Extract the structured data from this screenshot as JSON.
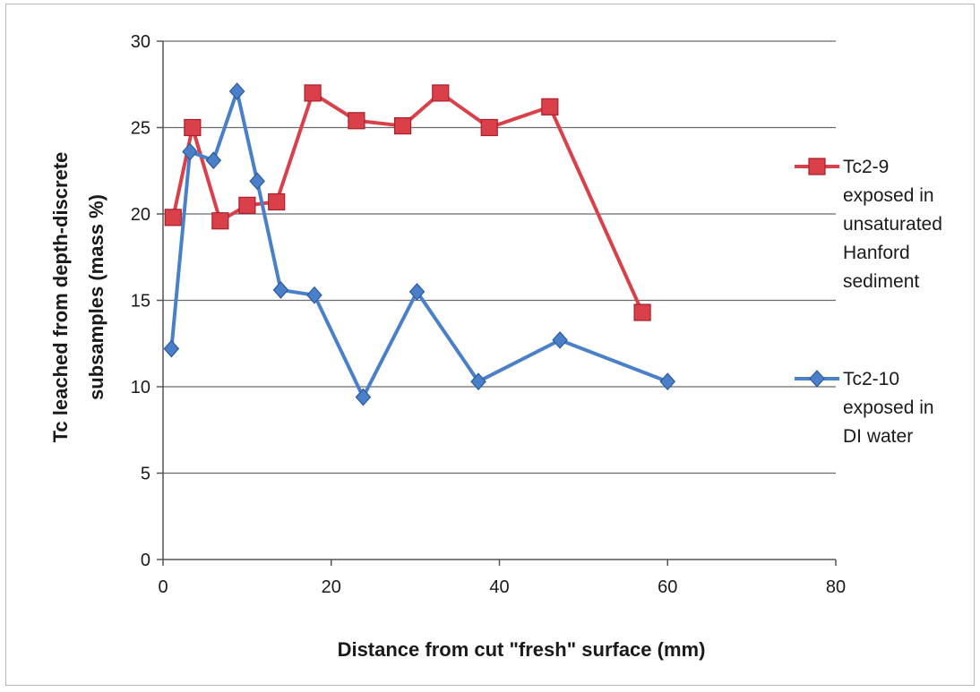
{
  "chart_data": {
    "type": "line",
    "title": "",
    "xlabel": "Distance from cut \"fresh\" surface (mm)",
    "ylabel_lines": [
      "Tc leached from depth-discrete",
      "subsamples  (mass %)"
    ],
    "xlim": [
      0,
      80
    ],
    "ylim": [
      0,
      30
    ],
    "x_ticks": [
      0,
      20,
      40,
      60,
      80
    ],
    "y_ticks": [
      0,
      5,
      10,
      15,
      20,
      25,
      30
    ],
    "grid": "horizontal",
    "legend_position": "right",
    "series": [
      {
        "name_lines": [
          "Tc2-9",
          "exposed in",
          "unsaturated",
          "Hanford",
          "sediment"
        ],
        "color": "#d9404a",
        "marker": "square",
        "x": [
          1.2,
          3.5,
          6.8,
          10.0,
          13.5,
          17.8,
          23.0,
          28.5,
          33.0,
          38.8,
          46.0,
          57.0
        ],
        "y": [
          19.8,
          25.0,
          19.6,
          20.5,
          20.7,
          27.0,
          25.4,
          25.1,
          27.0,
          25.0,
          26.2,
          14.3
        ]
      },
      {
        "name_lines": [
          "Tc2-10",
          "exposed in",
          "DI water"
        ],
        "color": "#4a7fc9",
        "marker": "diamond",
        "x": [
          1.0,
          3.2,
          6.0,
          8.8,
          11.2,
          14.0,
          18.0,
          23.8,
          30.2,
          37.5,
          47.2,
          60.0
        ],
        "y": [
          12.2,
          23.6,
          23.1,
          27.1,
          21.9,
          15.6,
          15.3,
          9.4,
          15.5,
          10.3,
          12.7,
          10.3
        ]
      }
    ]
  }
}
